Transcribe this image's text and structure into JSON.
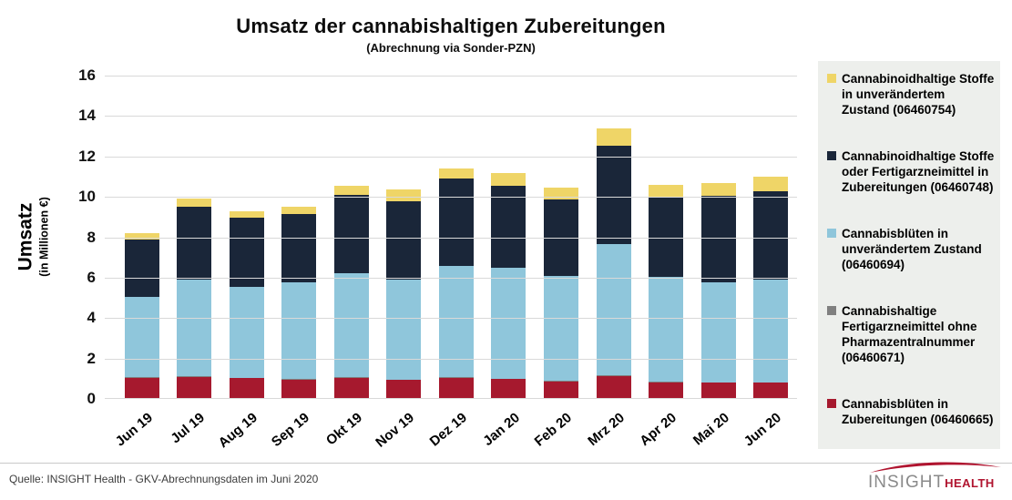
{
  "chart_data": {
    "type": "bar",
    "stacked": true,
    "title": "Umsatz der cannabishaltigen Zubereitungen",
    "subtitle": "(Abrechnung via Sonder-PZN)",
    "ylabel": "Umsatz",
    "ylabel_sub": "(in Millionen €)",
    "ylim": [
      0,
      16
    ],
    "ytick_step": 2,
    "grid": "horizontal-light-gray",
    "legend_position": "right",
    "categories": [
      "Jun 19",
      "Jul 19",
      "Aug 19",
      "Sep 19",
      "Okt 19",
      "Nov 19",
      "Dez 19",
      "Jan 20",
      "Feb 20",
      "Mrz 20",
      "Apr 20",
      "Mai 20",
      "Jun 20"
    ],
    "series": [
      {
        "name": "Cannabisblüten in Zubereitungen (06460665)",
        "color": "#A6192E",
        "values": [
          1.05,
          1.08,
          1.02,
          0.95,
          1.05,
          0.93,
          1.05,
          0.98,
          0.85,
          1.12,
          0.83,
          0.8,
          0.8
        ]
      },
      {
        "name": "Cannabishaltige Fertigarzneimittel ohne Pharmazentralnummer (06460671)",
        "color": "#808080",
        "values": [
          0.02,
          0.04,
          0.02,
          0.05,
          0.03,
          0.04,
          0.03,
          0.03,
          0.03,
          0.05,
          0.03,
          0.03,
          0.03
        ]
      },
      {
        "name": "Cannabisblüten in unverändertem Zustand (06460694)",
        "color": "#8FC6DB",
        "values": [
          3.98,
          4.78,
          4.51,
          4.75,
          5.12,
          4.93,
          5.52,
          5.49,
          5.22,
          6.48,
          5.19,
          4.92,
          5.07
        ]
      },
      {
        "name": "Cannabinoidhaltige Stoffe oder Fertigarzneimittel in Zubereitungen (06460748)",
        "color": "#1A2639",
        "values": [
          2.85,
          3.6,
          3.4,
          3.4,
          3.9,
          3.9,
          4.3,
          4.05,
          3.75,
          4.9,
          3.95,
          4.3,
          4.37
        ]
      },
      {
        "name": "Cannabinoidhaltige Stoffe in unverändertem Zustand (06460754)",
        "color": "#EFD567",
        "values": [
          0.3,
          0.4,
          0.35,
          0.35,
          0.45,
          0.55,
          0.5,
          0.65,
          0.6,
          0.85,
          0.6,
          0.65,
          0.73
        ]
      }
    ],
    "totals": [
      8.2,
      9.9,
      9.3,
      9.5,
      10.55,
      10.35,
      11.4,
      11.2,
      10.45,
      13.4,
      10.6,
      10.7,
      11.0
    ],
    "legend_bg": "#EDEFEC",
    "grid_color": "#D9D9D9"
  },
  "footer": {
    "source": "Quelle: INSIGHT Health - GKV-Abrechnungsdaten im Juni 2020",
    "logo_primary": "INSIGHT",
    "logo_secondary": "HEALTH",
    "logo_accent": "#B0142F"
  }
}
